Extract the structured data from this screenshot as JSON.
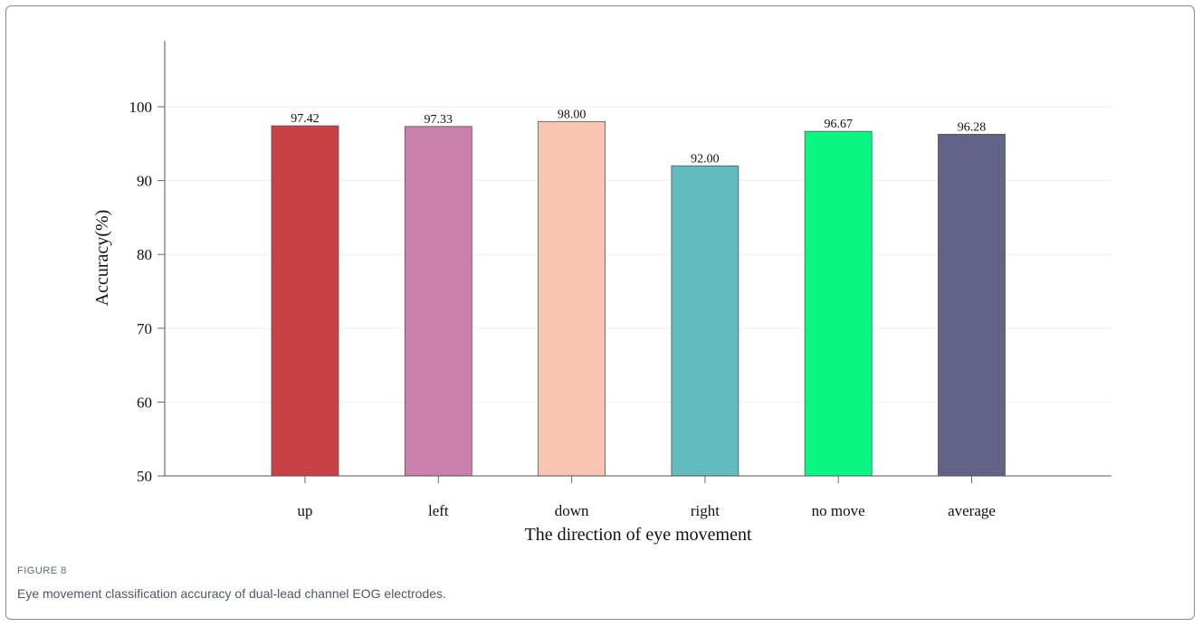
{
  "figure": {
    "label": "FIGURE 8",
    "caption": "Eye movement classification accuracy of dual-lead channel EOG electrodes."
  },
  "chart_data": {
    "type": "bar",
    "categories": [
      "up",
      "left",
      "down",
      "right",
      "no move",
      "average"
    ],
    "values": [
      97.42,
      97.33,
      98.0,
      92.0,
      96.67,
      96.28
    ],
    "value_labels": [
      "97.42",
      "97.33",
      "98.00",
      "92.00",
      "96.67",
      "96.28"
    ],
    "colors": [
      "#c94144",
      "#c980aa",
      "#f9c4b1",
      "#62bcbd",
      "#0af784",
      "#636389"
    ],
    "xlabel": "The direction of eye movement",
    "ylabel": "Accuracy(%)",
    "ylim": [
      50,
      100
    ],
    "yticks": [
      50,
      60,
      70,
      80,
      90,
      100
    ],
    "grid": true
  }
}
